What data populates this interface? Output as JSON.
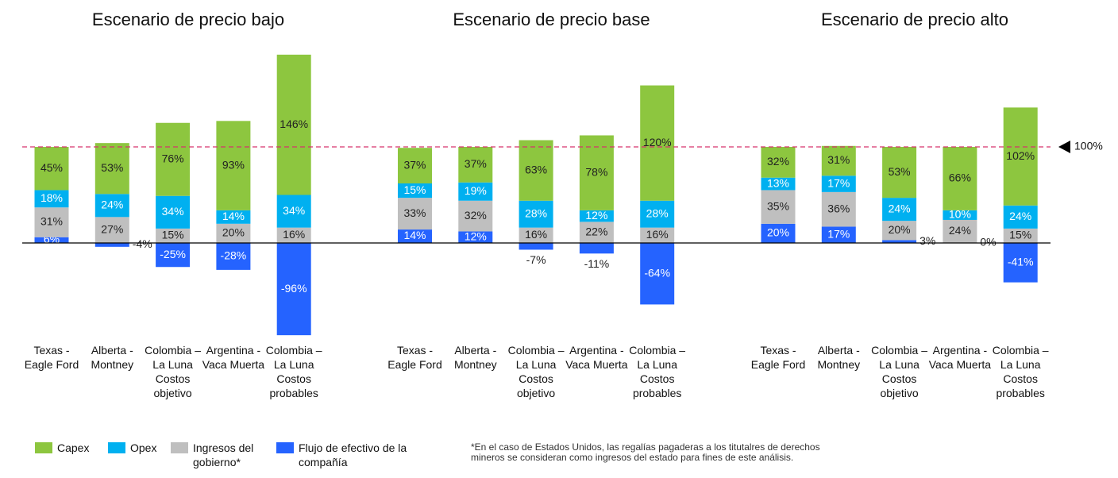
{
  "chart_data": [
    {
      "type": "bar",
      "stacked": true,
      "title": "Escenario de precio bajo",
      "categories": [
        "Texas - Eagle Ford",
        "Alberta - Montney",
        "Colombia – La Luna Costos objetivo",
        "Argentina - Vaca Muerta",
        "Colombia – La Luna Costos probables"
      ],
      "series": [
        {
          "name": "Capex",
          "color": "#8dc63f",
          "values": [
            45,
            53,
            76,
            93,
            146
          ],
          "value_labels": [
            "45%",
            "53%",
            "76%",
            "93%",
            "146%"
          ]
        },
        {
          "name": "Opex",
          "color": "#00b0f0",
          "values": [
            18,
            24,
            34,
            14,
            34
          ],
          "value_labels": [
            "18%",
            "24%",
            "34%",
            "14%",
            "34%"
          ]
        },
        {
          "name": "Ingresos del gobierno*",
          "color": "#bfbfbf",
          "values": [
            31,
            27,
            15,
            20,
            16
          ],
          "value_labels": [
            "31%",
            "27%",
            "15%",
            "20%",
            "16%"
          ]
        },
        {
          "name": "Flujo de efectivo de la compañía",
          "color": "#2563ff",
          "values": [
            6,
            -4,
            -25,
            -28,
            -96
          ],
          "value_labels": [
            "6%",
            "-4%",
            "-25%",
            "-28%",
            "-96%"
          ]
        }
      ]
    },
    {
      "type": "bar",
      "stacked": true,
      "title": "Escenario de precio base",
      "categories": [
        "Texas - Eagle Ford",
        "Alberta - Montney",
        "Colombia – La Luna Costos objetivo",
        "Argentina - Vaca Muerta",
        "Colombia – La Luna Costos probables"
      ],
      "series": [
        {
          "name": "Capex",
          "color": "#8dc63f",
          "values": [
            37,
            37,
            63,
            78,
            120
          ],
          "value_labels": [
            "37%",
            "37%",
            "63%",
            "78%",
            "120%"
          ]
        },
        {
          "name": "Opex",
          "color": "#00b0f0",
          "values": [
            15,
            19,
            28,
            12,
            28
          ],
          "value_labels": [
            "15%",
            "19%",
            "28%",
            "12%",
            "28%"
          ]
        },
        {
          "name": "Ingresos del gobierno*",
          "color": "#bfbfbf",
          "values": [
            33,
            32,
            16,
            22,
            16
          ],
          "value_labels": [
            "33%",
            "32%",
            "16%",
            "22%",
            "16%"
          ]
        },
        {
          "name": "Flujo de efectivo de la compañía",
          "color": "#2563ff",
          "values": [
            14,
            12,
            -7,
            -11,
            -64
          ],
          "value_labels": [
            "14%",
            "12%",
            "-7%",
            "-11%",
            "-64%"
          ]
        }
      ]
    },
    {
      "type": "bar",
      "stacked": true,
      "title": "Escenario de precio alto",
      "categories": [
        "Texas - Eagle Ford",
        "Alberta - Montney",
        "Colombia – La Luna Costos objetivo",
        "Argentina - Vaca Muerta",
        "Colombia – La Luna Costos probables"
      ],
      "series": [
        {
          "name": "Capex",
          "color": "#8dc63f",
          "values": [
            32,
            31,
            53,
            66,
            102
          ],
          "value_labels": [
            "32%",
            "31%",
            "53%",
            "66%",
            "102%"
          ]
        },
        {
          "name": "Opex",
          "color": "#00b0f0",
          "values": [
            13,
            17,
            24,
            10,
            24
          ],
          "value_labels": [
            "13%",
            "17%",
            "24%",
            "10%",
            "24%"
          ]
        },
        {
          "name": "Ingresos del gobierno*",
          "color": "#bfbfbf",
          "values": [
            35,
            36,
            20,
            24,
            15
          ],
          "value_labels": [
            "35%",
            "36%",
            "20%",
            "24%",
            "15%"
          ]
        },
        {
          "name": "Flujo de efectivo de la compañía",
          "color": "#2563ff",
          "values": [
            20,
            17,
            3,
            0,
            -41
          ],
          "value_labels": [
            "20%",
            "17%",
            "3%",
            "0%",
            "-41%"
          ]
        }
      ]
    }
  ],
  "reference_line": {
    "value": 100,
    "label": "100%",
    "color": "#d6336c"
  },
  "footnote": "*En el caso de Estados Unidos, las regalías pagaderas a los titutalres de derechos mineros se consideran como ingresos del estado para fines de este análisis."
}
